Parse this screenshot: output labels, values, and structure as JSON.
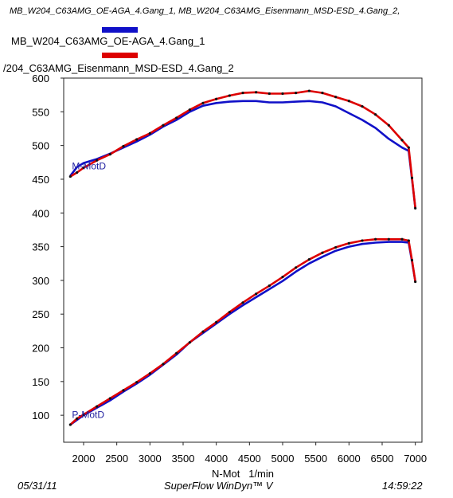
{
  "header": {
    "subtitle": "MB_W204_C63AMG_OE-AGA_4.Gang_1, MB_W204_C63AMG_Eisenmann_MSD-ESD_4.Gang_2,"
  },
  "legend": [
    {
      "label": "MB_W204_C63AMG_OE-AGA_4.Gang_1",
      "color": "#1010c8"
    },
    {
      "label": "/204_C63AMG_Eisenmann_MSD-ESD_4.Gang_2",
      "color": "#dd0000"
    }
  ],
  "footer": {
    "date": "05/31/11",
    "app": "SuperFlow WinDyn™ V",
    "time": "14:59:22"
  },
  "chart_data": {
    "type": "line",
    "xlabel": "N-Mot_ 1/min",
    "ylabel": "",
    "xlim": [
      1700,
      7100
    ],
    "ylim": [
      60,
      600
    ],
    "xticks": [
      2000,
      2500,
      3000,
      3500,
      4000,
      4500,
      5000,
      5500,
      6000,
      6500,
      7000
    ],
    "yticks": [
      100,
      150,
      200,
      250,
      300,
      350,
      400,
      450,
      500,
      550,
      600
    ],
    "grid": false,
    "series_labels": [
      "M-MotD",
      "P-MotD"
    ],
    "series": [
      {
        "group": "M-MotD",
        "color": "#1010c8",
        "x": [
          1800,
          1900,
          2000,
          2200,
          2400,
          2600,
          2800,
          3000,
          3200,
          3400,
          3600,
          3800,
          4000,
          4200,
          4400,
          4600,
          4800,
          5000,
          5200,
          5400,
          5600,
          5800,
          6000,
          6200,
          6400,
          6600,
          6800,
          6900,
          6950,
          7000
        ],
        "y": [
          455,
          468,
          474,
          480,
          488,
          497,
          506,
          516,
          528,
          538,
          550,
          559,
          563,
          565,
          566,
          566,
          564,
          564,
          565,
          566,
          564,
          558,
          548,
          538,
          526,
          510,
          497,
          492,
          450,
          407
        ]
      },
      {
        "group": "M-MotD",
        "color": "#dd0000",
        "x": [
          1800,
          1900,
          2000,
          2200,
          2400,
          2600,
          2800,
          3000,
          3200,
          3400,
          3600,
          3800,
          4000,
          4200,
          4400,
          4600,
          4800,
          5000,
          5200,
          5400,
          5600,
          5800,
          6000,
          6200,
          6400,
          6600,
          6800,
          6900,
          6950,
          7000
        ],
        "y": [
          454,
          460,
          467,
          478,
          487,
          499,
          509,
          518,
          530,
          541,
          553,
          563,
          569,
          574,
          578,
          579,
          577,
          577,
          578,
          581,
          578,
          572,
          566,
          558,
          546,
          530,
          508,
          497,
          452,
          407
        ]
      },
      {
        "group": "P-MotD",
        "color": "#1010c8",
        "x": [
          1800,
          1900,
          2000,
          2200,
          2400,
          2600,
          2800,
          3000,
          3200,
          3400,
          3600,
          3800,
          4000,
          4200,
          4400,
          4600,
          4800,
          5000,
          5200,
          5400,
          5600,
          5800,
          6000,
          6200,
          6400,
          6600,
          6800,
          6900,
          6950,
          7000
        ],
        "y": [
          86,
          93,
          100,
          111,
          122,
          135,
          147,
          160,
          175,
          190,
          208,
          222,
          236,
          250,
          263,
          275,
          287,
          299,
          313,
          325,
          335,
          344,
          350,
          354,
          356,
          357,
          357,
          356,
          328,
          298
        ]
      },
      {
        "group": "P-MotD",
        "color": "#dd0000",
        "x": [
          1800,
          1900,
          2000,
          2200,
          2400,
          2600,
          2800,
          3000,
          3200,
          3400,
          3600,
          3800,
          4000,
          4200,
          4400,
          4600,
          4800,
          5000,
          5200,
          5400,
          5600,
          5800,
          6000,
          6200,
          6400,
          6600,
          6800,
          6900,
          6950,
          7000
        ],
        "y": [
          86,
          95,
          101,
          113,
          125,
          137,
          149,
          162,
          176,
          192,
          208,
          224,
          238,
          253,
          267,
          280,
          292,
          305,
          319,
          331,
          341,
          349,
          355,
          359,
          361,
          361,
          361,
          359,
          330,
          298
        ]
      }
    ]
  }
}
